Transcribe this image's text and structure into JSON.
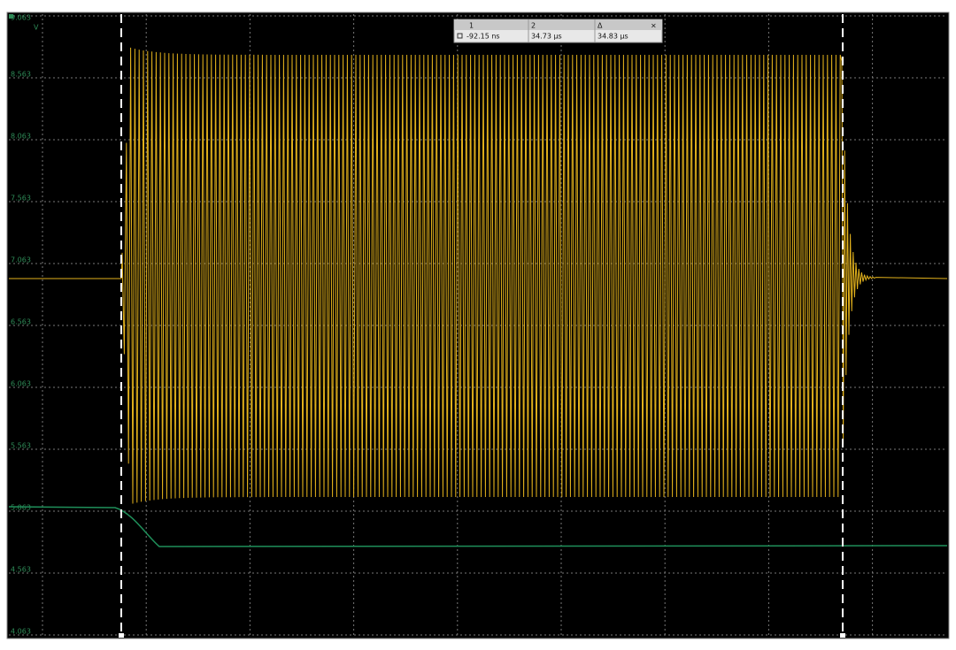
{
  "axis": {
    "labels": [
      "9.063",
      "8.563",
      "8.063",
      "7.563",
      "7.063",
      "6.563",
      "6.063",
      "5.563",
      "5.063",
      "4.563",
      "4.063"
    ],
    "unit": "V"
  },
  "cursors": {
    "headers": [
      "1",
      "2",
      "Δ"
    ],
    "values": [
      "-92.15 ns",
      "34.73 µs",
      "34.83 µs"
    ]
  }
}
